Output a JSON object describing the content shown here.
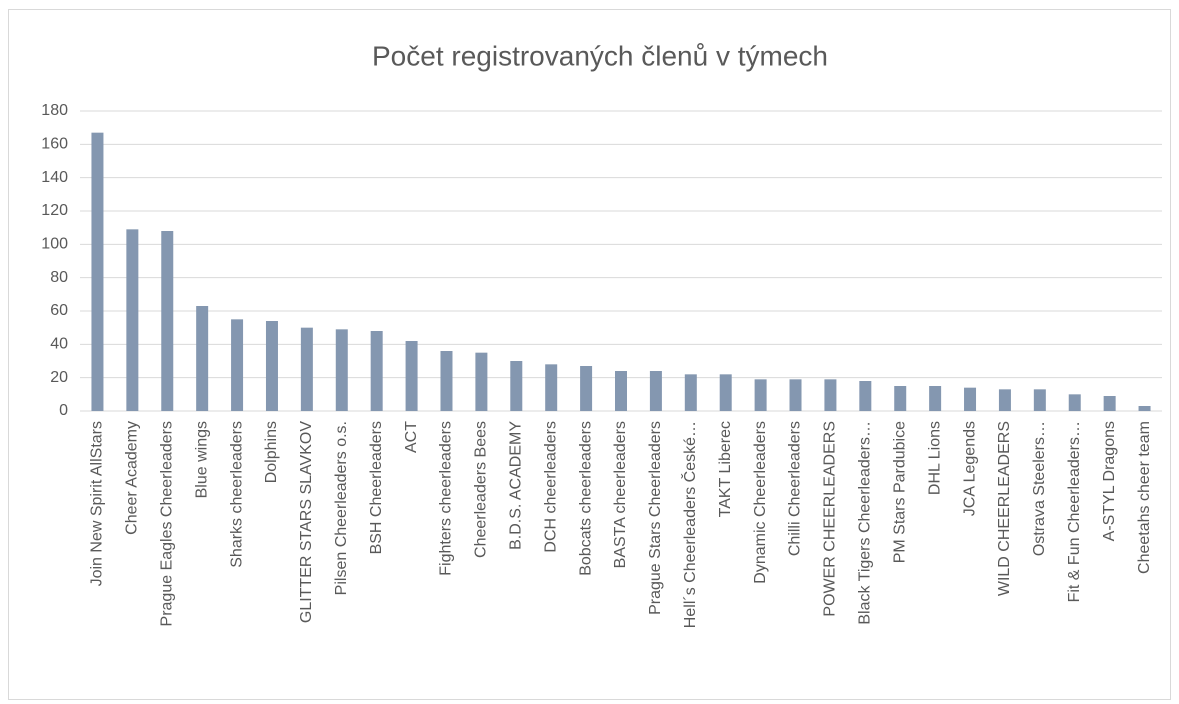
{
  "chart_data": {
    "type": "bar",
    "title": "Počet registrovaných členů v týmech",
    "categories": [
      "Join New Spirit AllStars",
      "Cheer Academy",
      "Prague Eagles Cheerleaders",
      "Blue wings",
      "Sharks cheerleaders",
      "Dolphins",
      "GLITTER STARS SLAVKOV",
      "Pilsen Cheerleaders o.s.",
      "BSH Cheerleaders",
      "ACT",
      "Fighters cheerleaders",
      "Cheerleaders Bees",
      "B.D.S. ACADEMY",
      "DCH cheerleaders",
      "Bobcats cheerleaders",
      "BASTA cheerleaders",
      "Prague Stars Cheerleaders",
      "Hell´s Cheerleaders České…",
      "TAKT Liberec",
      "Dynamic Cheerleaders",
      "Chilli Cheerleaders",
      "POWER CHEERLEADERS",
      "Black Tigers Cheerleaders…",
      "PM Stars Pardubice",
      "DHL Lions",
      "JCA Legends",
      "WILD CHEERLEADERS",
      "Ostrava Steelers…",
      "Fit & Fun Cheerleaders…",
      "A-STYL Dragons",
      "Cheetahs cheer team"
    ],
    "values": [
      167,
      109,
      108,
      63,
      55,
      54,
      50,
      49,
      48,
      42,
      36,
      35,
      30,
      28,
      27,
      24,
      24,
      22,
      22,
      19,
      19,
      19,
      18,
      15,
      15,
      14,
      13,
      13,
      10,
      9,
      3
    ],
    "color": "#8497b0",
    "ylim": [
      0,
      180
    ],
    "yticks": [
      0,
      20,
      40,
      60,
      80,
      100,
      120,
      140,
      160,
      180
    ],
    "grid": true
  }
}
